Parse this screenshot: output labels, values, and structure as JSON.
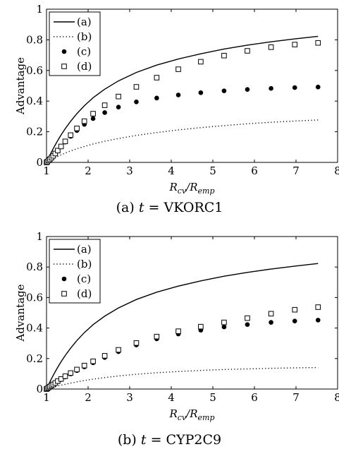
{
  "chart_data": [
    {
      "type": "line",
      "caption_prefix": "(a)",
      "caption_var": "t",
      "caption_eq": "=",
      "caption_value": "VKORC1",
      "xlabel_main": "R",
      "xlabel_sub1": "cv",
      "xlabel_slash": "/",
      "xlabel_main2": "R",
      "xlabel_sub2": "emp",
      "ylabel": "Advantage",
      "xlim": [
        1,
        8
      ],
      "ylim": [
        0,
        1
      ],
      "xticks": [
        "1",
        "2",
        "3",
        "4",
        "5",
        "6",
        "7",
        "8"
      ],
      "yticks": [
        "0",
        "0.2",
        "0.4",
        "0.6",
        "0.8",
        "1"
      ],
      "legend_position": "top-left",
      "x": [
        1.0,
        1.02,
        1.05,
        1.08,
        1.12,
        1.16,
        1.21,
        1.27,
        1.35,
        1.45,
        1.58,
        1.73,
        1.91,
        2.12,
        2.4,
        2.73,
        3.16,
        3.65,
        4.17,
        4.71,
        5.27,
        5.83,
        6.4,
        6.97,
        7.53
      ],
      "series": [
        {
          "name": "(a)",
          "style": "solid",
          "values": [
            0.0,
            0.012,
            0.03,
            0.046,
            0.068,
            0.089,
            0.114,
            0.143,
            0.179,
            0.22,
            0.268,
            0.318,
            0.37,
            0.422,
            0.478,
            0.532,
            0.587,
            0.635,
            0.675,
            0.709,
            0.74,
            0.765,
            0.787,
            0.806,
            0.823
          ]
        },
        {
          "name": "(b)",
          "style": "dotted",
          "values": [
            0.0,
            0.003,
            0.008,
            0.012,
            0.018,
            0.024,
            0.031,
            0.039,
            0.049,
            0.061,
            0.075,
            0.089,
            0.104,
            0.12,
            0.138,
            0.156,
            0.176,
            0.195,
            0.212,
            0.227,
            0.24,
            0.252,
            0.262,
            0.27,
            0.277
          ]
        },
        {
          "name": "(c)",
          "style": "filled-circle",
          "values": [
            0.0,
            0.005,
            0.013,
            0.021,
            0.031,
            0.043,
            0.057,
            0.076,
            0.102,
            0.133,
            0.17,
            0.208,
            0.248,
            0.286,
            0.325,
            0.361,
            0.395,
            0.42,
            0.44,
            0.455,
            0.467,
            0.476,
            0.483,
            0.488,
            0.492
          ]
        },
        {
          "name": "(d)",
          "style": "open-square",
          "values": [
            0.0,
            0.005,
            0.013,
            0.021,
            0.031,
            0.043,
            0.058,
            0.077,
            0.104,
            0.137,
            0.178,
            0.222,
            0.269,
            0.318,
            0.373,
            0.43,
            0.493,
            0.553,
            0.608,
            0.657,
            0.697,
            0.728,
            0.752,
            0.769,
            0.78
          ]
        }
      ]
    },
    {
      "type": "line",
      "caption_prefix": "(b)",
      "caption_var": "t",
      "caption_eq": "=",
      "caption_value": "CYP2C9",
      "xlabel_main": "R",
      "xlabel_sub1": "cv",
      "xlabel_slash": "/",
      "xlabel_main2": "R",
      "xlabel_sub2": "emp",
      "ylabel": "Advantage",
      "xlim": [
        1,
        8
      ],
      "ylim": [
        0,
        1
      ],
      "xticks": [
        "1",
        "2",
        "3",
        "4",
        "5",
        "6",
        "7",
        "8"
      ],
      "yticks": [
        "0",
        "0.2",
        "0.4",
        "0.6",
        "0.8",
        "1"
      ],
      "legend_position": "top-left",
      "x": [
        1.0,
        1.02,
        1.05,
        1.08,
        1.12,
        1.16,
        1.21,
        1.27,
        1.35,
        1.45,
        1.58,
        1.73,
        1.91,
        2.12,
        2.4,
        2.73,
        3.16,
        3.65,
        4.17,
        4.71,
        5.27,
        5.83,
        6.4,
        6.97,
        7.53
      ],
      "series": [
        {
          "name": "(a)",
          "style": "solid",
          "values": [
            0.0,
            0.012,
            0.03,
            0.046,
            0.068,
            0.089,
            0.114,
            0.143,
            0.179,
            0.22,
            0.268,
            0.318,
            0.37,
            0.422,
            0.478,
            0.532,
            0.587,
            0.635,
            0.675,
            0.709,
            0.74,
            0.765,
            0.787,
            0.806,
            0.823
          ]
        },
        {
          "name": "(b)",
          "style": "dotted",
          "values": [
            0.0,
            0.002,
            0.004,
            0.006,
            0.009,
            0.012,
            0.016,
            0.02,
            0.025,
            0.031,
            0.039,
            0.047,
            0.056,
            0.065,
            0.075,
            0.086,
            0.097,
            0.107,
            0.115,
            0.122,
            0.128,
            0.132,
            0.136,
            0.139,
            0.141
          ]
        },
        {
          "name": "(c)",
          "style": "filled-circle",
          "values": [
            0.0,
            0.004,
            0.009,
            0.014,
            0.021,
            0.028,
            0.037,
            0.048,
            0.062,
            0.079,
            0.099,
            0.121,
            0.145,
            0.172,
            0.207,
            0.245,
            0.289,
            0.329,
            0.361,
            0.386,
            0.407,
            0.423,
            0.437,
            0.446,
            0.452
          ]
        },
        {
          "name": "(d)",
          "style": "open-square",
          "values": [
            0.0,
            0.004,
            0.01,
            0.016,
            0.023,
            0.03,
            0.04,
            0.052,
            0.066,
            0.084,
            0.105,
            0.128,
            0.154,
            0.182,
            0.218,
            0.257,
            0.302,
            0.344,
            0.379,
            0.409,
            0.437,
            0.465,
            0.494,
            0.52,
            0.537
          ]
        }
      ]
    }
  ]
}
